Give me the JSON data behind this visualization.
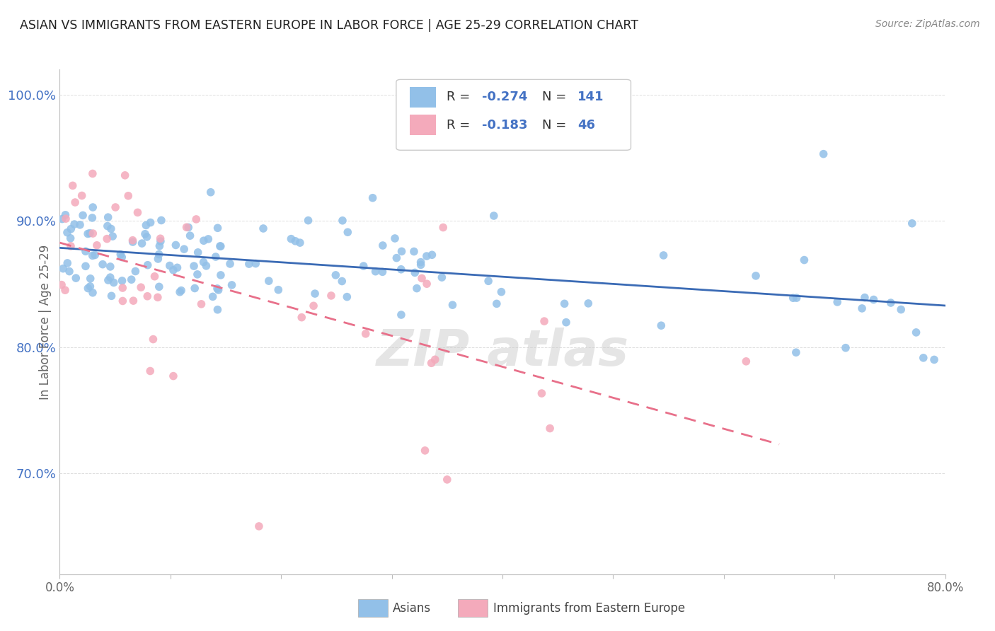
{
  "title": "ASIAN VS IMMIGRANTS FROM EASTERN EUROPE IN LABOR FORCE | AGE 25-29 CORRELATION CHART",
  "source": "Source: ZipAtlas.com",
  "ylabel": "In Labor Force | Age 25-29",
  "xlim": [
    0.0,
    0.8
  ],
  "ylim": [
    0.62,
    1.02
  ],
  "xticks": [
    0.0,
    0.1,
    0.2,
    0.3,
    0.4,
    0.5,
    0.6,
    0.7,
    0.8
  ],
  "xticklabels": [
    "0.0%",
    "",
    "",
    "",
    "",
    "",
    "",
    "",
    "80.0%"
  ],
  "yticks": [
    0.7,
    0.8,
    0.9,
    1.0
  ],
  "yticklabels": [
    "70.0%",
    "80.0%",
    "90.0%",
    "100.0%"
  ],
  "blue_R": -0.274,
  "blue_N": 141,
  "pink_R": -0.183,
  "pink_N": 46,
  "blue_color": "#92C0E8",
  "pink_color": "#F4AABB",
  "blue_line_color": "#3B6BB5",
  "pink_line_color": "#E8708A",
  "legend_label_1": "Asians",
  "legend_label_2": "Immigrants from Eastern Europe",
  "background_color": "#FFFFFF",
  "grid_color": "#DDDDDD",
  "axis_color": "#4472C4",
  "title_color": "#222222"
}
